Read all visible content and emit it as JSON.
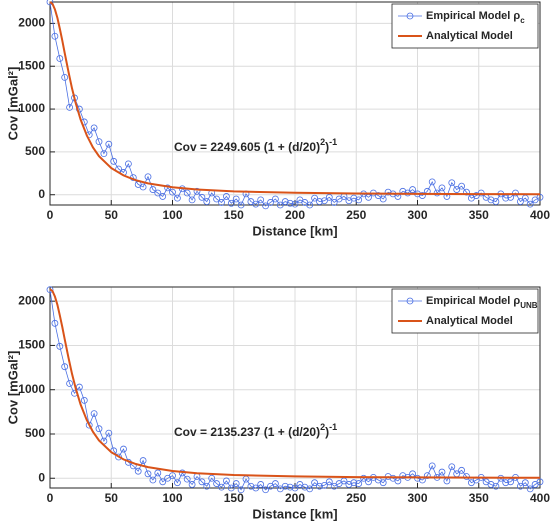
{
  "chart_data": [
    {
      "type": "line",
      "xlabel": "Distance [km]",
      "ylabel": "Cov [mGal²]",
      "xlim": [
        0,
        400
      ],
      "xticks": [
        0,
        50,
        100,
        150,
        200,
        250,
        300,
        350,
        400
      ],
      "ylim": [
        -120,
        2250
      ],
      "yticks": [
        0,
        500,
        1000,
        1500,
        2000
      ],
      "grid": true,
      "legend": "upper right",
      "annotation": [
        "Cov = 2249.605 (1 + (d/20)",
        "2",
        ")",
        "-1"
      ],
      "series": [
        {
          "name": "Empirical Model ρ",
          "subscript": "c",
          "color": "#4a6fe3",
          "marker": "o",
          "x": [
            0,
            4,
            8,
            12,
            16,
            20,
            24,
            28,
            32,
            36,
            40,
            44,
            48,
            52,
            56,
            60,
            64,
            68,
            72,
            76,
            80,
            84,
            88,
            92,
            96,
            100,
            104,
            108,
            112,
            116,
            120,
            124,
            128,
            132,
            136,
            140,
            144,
            148,
            152,
            156,
            160,
            164,
            168,
            172,
            176,
            180,
            184,
            188,
            192,
            196,
            200,
            204,
            208,
            212,
            216,
            220,
            224,
            228,
            232,
            236,
            240,
            244,
            248,
            252,
            256,
            260,
            264,
            268,
            272,
            276,
            280,
            284,
            288,
            292,
            296,
            300,
            304,
            308,
            312,
            316,
            320,
            324,
            328,
            332,
            336,
            340,
            344,
            348,
            352,
            356,
            360,
            364,
            368,
            372,
            376,
            380,
            384,
            388,
            392,
            396,
            400
          ],
          "values": [
            2250,
            1850,
            1590,
            1370,
            1020,
            1130,
            1000,
            850,
            700,
            780,
            620,
            480,
            590,
            390,
            300,
            260,
            360,
            200,
            120,
            90,
            210,
            60,
            20,
            -20,
            80,
            30,
            -40,
            70,
            20,
            -60,
            40,
            -30,
            -80,
            20,
            -50,
            -90,
            -20,
            -100,
            -50,
            -120,
            10,
            -80,
            -110,
            -60,
            -130,
            -90,
            -50,
            -120,
            -80,
            -100,
            -110,
            -60,
            -90,
            -120,
            -40,
            -80,
            -70,
            -30,
            -90,
            -50,
            -20,
            -70,
            -40,
            -60,
            10,
            -30,
            20,
            -10,
            -50,
            30,
            10,
            -20,
            40,
            20,
            60,
            10,
            -10,
            40,
            150,
            20,
            80,
            -20,
            140,
            60,
            100,
            30,
            -40,
            -10,
            20,
            -30,
            -60,
            -80,
            10,
            -40,
            -30,
            20,
            -80,
            -40,
            -110,
            -60,
            -30
          ]
        },
        {
          "name": "Analytical Model",
          "color": "#d95319",
          "x": [
            0,
            2,
            4,
            6,
            8,
            10,
            12,
            15,
            18,
            21,
            25,
            30,
            35,
            40,
            50,
            60,
            70,
            80,
            100,
            120,
            150,
            200,
            250,
            300,
            350,
            400
          ],
          "values": [
            2249.6,
            2227.3,
            2163.1,
            2063.9,
            1939.3,
            1799.7,
            1654.1,
            1439.7,
            1242.9,
            1070.0,
            877.9,
            692.2,
            553.8,
            449.9,
            310.3,
            225.0,
            169.8,
            132.3,
            86.5,
            60.8,
            39.3,
            22.3,
            14.3,
            10.0,
            7.3,
            5.6
          ]
        }
      ]
    },
    {
      "type": "line",
      "xlabel": "Distance [km]",
      "ylabel": "Cov [mGal²]",
      "xlim": [
        0,
        400
      ],
      "xticks": [
        0,
        50,
        100,
        150,
        200,
        250,
        300,
        350,
        400
      ],
      "ylim": [
        -110,
        2160
      ],
      "yticks": [
        0,
        500,
        1000,
        1500,
        2000
      ],
      "grid": true,
      "legend": "upper right",
      "annotation": [
        "Cov = 2135.237 (1 + (d/20)",
        "2",
        ")",
        "-1"
      ],
      "series": [
        {
          "name": "Empirical Model ρ",
          "subscript": "UNB",
          "color": "#4a6fe3",
          "marker": "o",
          "x": [
            0,
            4,
            8,
            12,
            16,
            20,
            24,
            28,
            32,
            36,
            40,
            44,
            48,
            52,
            56,
            60,
            64,
            68,
            72,
            76,
            80,
            84,
            88,
            92,
            96,
            100,
            104,
            108,
            112,
            116,
            120,
            124,
            128,
            132,
            136,
            140,
            144,
            148,
            152,
            156,
            160,
            164,
            168,
            172,
            176,
            180,
            184,
            188,
            192,
            196,
            200,
            204,
            208,
            212,
            216,
            220,
            224,
            228,
            232,
            236,
            240,
            244,
            248,
            252,
            256,
            260,
            264,
            268,
            272,
            276,
            280,
            284,
            288,
            292,
            296,
            300,
            304,
            308,
            312,
            316,
            320,
            324,
            328,
            332,
            336,
            340,
            344,
            348,
            352,
            356,
            360,
            364,
            368,
            372,
            376,
            380,
            384,
            388,
            392,
            396,
            400
          ],
          "values": [
            2130,
            1750,
            1490,
            1260,
            1070,
            960,
            1030,
            880,
            600,
            730,
            560,
            420,
            510,
            310,
            240,
            330,
            180,
            140,
            80,
            200,
            50,
            -20,
            60,
            -40,
            0,
            30,
            -50,
            60,
            -10,
            -70,
            20,
            -40,
            -90,
            0,
            -60,
            -100,
            -30,
            -110,
            -60,
            -130,
            -10,
            -90,
            -110,
            -70,
            -130,
            -90,
            -60,
            -120,
            -90,
            -100,
            -110,
            -70,
            -100,
            -120,
            -50,
            -90,
            -80,
            -40,
            -90,
            -60,
            -30,
            -70,
            -50,
            -60,
            0,
            -40,
            10,
            -20,
            -50,
            20,
            0,
            -30,
            30,
            10,
            50,
            0,
            -20,
            30,
            140,
            10,
            70,
            -30,
            130,
            50,
            90,
            20,
            -50,
            -20,
            10,
            -40,
            -70,
            -90,
            0,
            -50,
            -40,
            10,
            -90,
            -50,
            -120,
            -70,
            -40
          ]
        },
        {
          "name": "Analytical Model",
          "color": "#d95319",
          "x": [
            0,
            2,
            4,
            6,
            8,
            10,
            12,
            15,
            18,
            21,
            25,
            30,
            35,
            40,
            50,
            60,
            70,
            80,
            100,
            120,
            150,
            200,
            250,
            300,
            350,
            400
          ],
          "values": [
            2135.2,
            2114.1,
            2053.1,
            1958.9,
            1840.7,
            1708.2,
            1570.0,
            1366.6,
            1179.7,
            1015.6,
            833.3,
            657.0,
            525.6,
            427.0,
            294.5,
            213.5,
            161.2,
            125.6,
            82.1,
            57.7,
            37.3,
            21.1,
            13.6,
            9.4,
            6.9,
            5.3
          ]
        }
      ]
    }
  ]
}
